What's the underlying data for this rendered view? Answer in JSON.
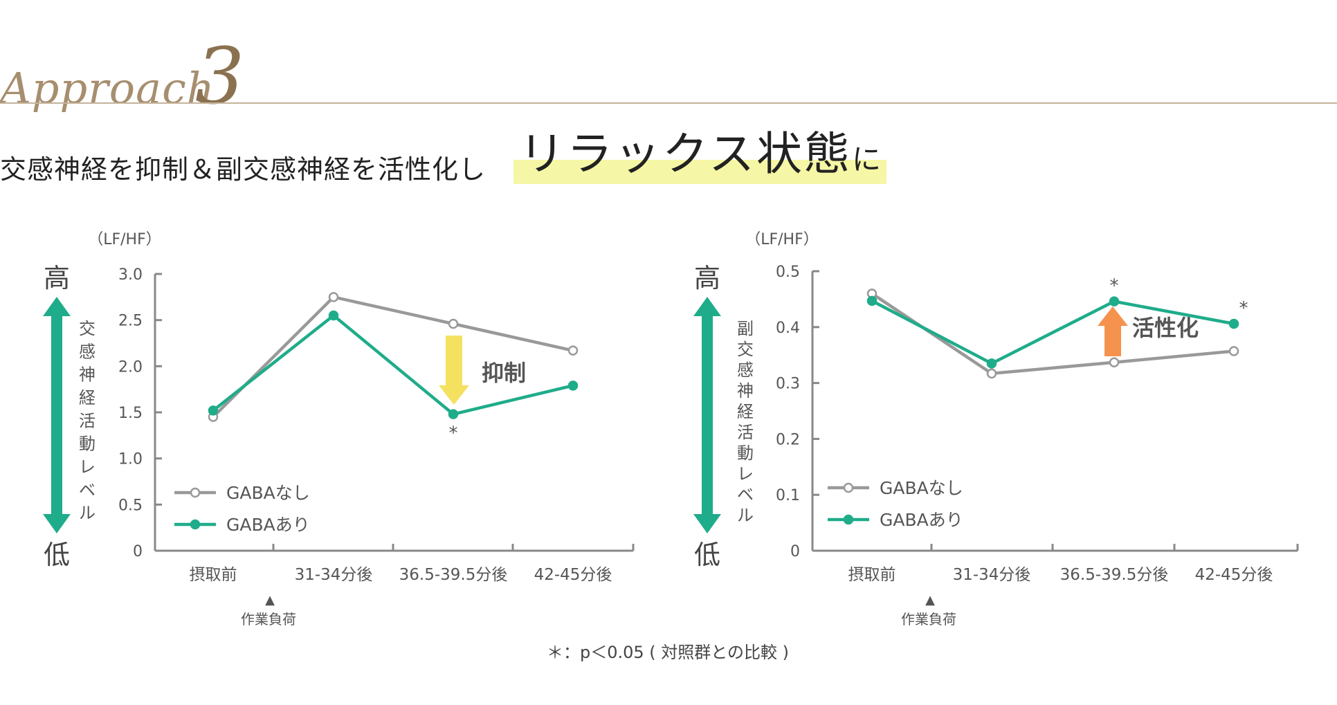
{
  "approach": {
    "word": "Approach",
    "number": "3"
  },
  "headline": {
    "main": "交感神経を抑制＆副交感神経を活性化し",
    "highlight": "リラックス状態",
    "suffix": "に"
  },
  "footnote": "＊：p＜0.05 ( 対照群との比較 )",
  "colors": {
    "gaba_nashi": "#999999",
    "gaba_ari": "#1fac8a",
    "arrow_down": "#f4e160",
    "arrow_up": "#f5934e",
    "big_arrow": "#1fac8a",
    "accent_rule": "#c4b39a"
  },
  "chart_data": [
    {
      "type": "line",
      "unit_label": "（LF/HF）",
      "ylabel": "交感神経活動レベル",
      "high_label": "高",
      "low_label": "低",
      "categories": [
        "摂取前",
        "31-34分後",
        "36.5-39.5分後",
        "42-45分後"
      ],
      "ylim": [
        0,
        3.0
      ],
      "yticks": [
        0,
        0.5,
        1.0,
        1.5,
        2.0,
        2.5,
        3.0
      ],
      "ytick_labels": [
        "0",
        "0.5",
        "1.0",
        "1.5",
        "2.0",
        "2.5",
        "3.0"
      ],
      "series": [
        {
          "name": "GABAなし",
          "values": [
            1.45,
            2.75,
            2.46,
            2.17
          ]
        },
        {
          "name": "GABAあり",
          "values": [
            1.52,
            2.55,
            1.48,
            1.79
          ]
        }
      ],
      "significance": [
        {
          "index": 2,
          "label": "*",
          "position": "below"
        }
      ],
      "annotation": {
        "text": "抑制",
        "arrow": "down",
        "index": 2
      },
      "event": {
        "marker": "▲",
        "text": "作業負荷",
        "between": [
          0,
          1
        ]
      },
      "legend": "bottom-left"
    },
    {
      "type": "line",
      "unit_label": "（LF/HF）",
      "ylabel": "副交感神経活動レベル",
      "high_label": "高",
      "low_label": "低",
      "categories": [
        "摂取前",
        "31-34分後",
        "36.5-39.5分後",
        "42-45分後"
      ],
      "ylim": [
        0,
        0.5
      ],
      "yticks": [
        0,
        0.1,
        0.2,
        0.3,
        0.4,
        0.5
      ],
      "ytick_labels": [
        "0",
        "0.1",
        "0.2",
        "0.3",
        "0.4",
        "0.5"
      ],
      "series": [
        {
          "name": "GABAなし",
          "values": [
            0.46,
            0.317,
            0.337,
            0.357
          ]
        },
        {
          "name": "GABAあり",
          "values": [
            0.447,
            0.335,
            0.446,
            0.406
          ]
        }
      ],
      "significance": [
        {
          "index": 2,
          "label": "*",
          "position": "above"
        },
        {
          "index": 3,
          "label": "*",
          "position": "above"
        }
      ],
      "annotation": {
        "text": "活性化",
        "arrow": "up",
        "index": 2
      },
      "event": {
        "marker": "▲",
        "text": "作業負荷",
        "between": [
          0,
          1
        ]
      },
      "legend": "bottom-left"
    }
  ]
}
